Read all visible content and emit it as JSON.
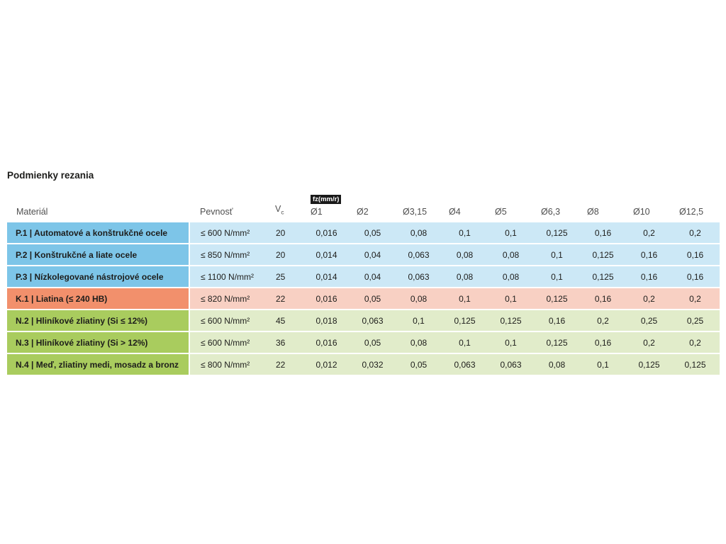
{
  "page": {
    "title": "Podmienky rezania"
  },
  "colors": {
    "steel_label": "#7dc5e8",
    "steel_cell": "#cce8f6",
    "cast_label": "#f2906c",
    "cast_cell": "#f8d0c3",
    "nonferrous_label": "#a9cc5e",
    "nonferrous_cell": "#e1ecca",
    "badge_bg": "#1a1a1a",
    "badge_text": "#ffffff",
    "header_text": "#4f4f4f",
    "body_text": "#1d1d1b"
  },
  "table": {
    "headers": {
      "material": "Materiál",
      "strength": "Pevnosť",
      "vc_main": "V",
      "vc_sub": "c",
      "feed_badge": "fz(mm/r)",
      "diameters": [
        "Ø1",
        "Ø2",
        "Ø3,15",
        "Ø4",
        "Ø5",
        "Ø6,3",
        "Ø8",
        "Ø10",
        "Ø12,5"
      ]
    },
    "rows": [
      {
        "group": "steel",
        "material": "P.1 | Automatové a konštrukčné ocele",
        "strength": "≤ 600 N/mm²",
        "vc": "20",
        "feeds": [
          "0,016",
          "0,05",
          "0,08",
          "0,1",
          "0,1",
          "0,125",
          "0,16",
          "0,2",
          "0,2"
        ]
      },
      {
        "group": "steel",
        "material": "P.2 | Konštrukčné a liate ocele",
        "strength": "≤ 850 N/mm²",
        "vc": "20",
        "feeds": [
          "0,014",
          "0,04",
          "0,063",
          "0,08",
          "0,08",
          "0,1",
          "0,125",
          "0,16",
          "0,16"
        ]
      },
      {
        "group": "steel",
        "material": "P.3 | Nízkolegované nástrojové ocele",
        "strength": "≤ 1100 N/mm²",
        "vc": "25",
        "feeds": [
          "0,014",
          "0,04",
          "0,063",
          "0,08",
          "0,08",
          "0,1",
          "0,125",
          "0,16",
          "0,16"
        ]
      },
      {
        "group": "cast",
        "material": "K.1 | Liatina (≤ 240 HB)",
        "strength": "≤ 820 N/mm²",
        "vc": "22",
        "feeds": [
          "0,016",
          "0,05",
          "0,08",
          "0,1",
          "0,1",
          "0,125",
          "0,16",
          "0,2",
          "0,2"
        ]
      },
      {
        "group": "nonferrous",
        "material": "N.2 | Hliníkové zliatiny (Si ≤ 12%)",
        "strength": "≤ 600 N/mm²",
        "vc": "45",
        "feeds": [
          "0,018",
          "0,063",
          "0,1",
          "0,125",
          "0,125",
          "0,16",
          "0,2",
          "0,25",
          "0,25"
        ]
      },
      {
        "group": "nonferrous",
        "material": "N.3 | Hliníkové zliatiny (Si > 12%)",
        "strength": "≤ 600 N/mm²",
        "vc": "36",
        "feeds": [
          "0,016",
          "0,05",
          "0,08",
          "0,1",
          "0,1",
          "0,125",
          "0,16",
          "0,2",
          "0,2"
        ]
      },
      {
        "group": "nonferrous",
        "material": "N.4 | Meď, zliatiny medi, mosadz a bronz",
        "strength": "≤ 800 N/mm²",
        "vc": "22",
        "feeds": [
          "0,012",
          "0,032",
          "0,05",
          "0,063",
          "0,063",
          "0,08",
          "0,1",
          "0,125",
          "0,125"
        ]
      }
    ]
  }
}
